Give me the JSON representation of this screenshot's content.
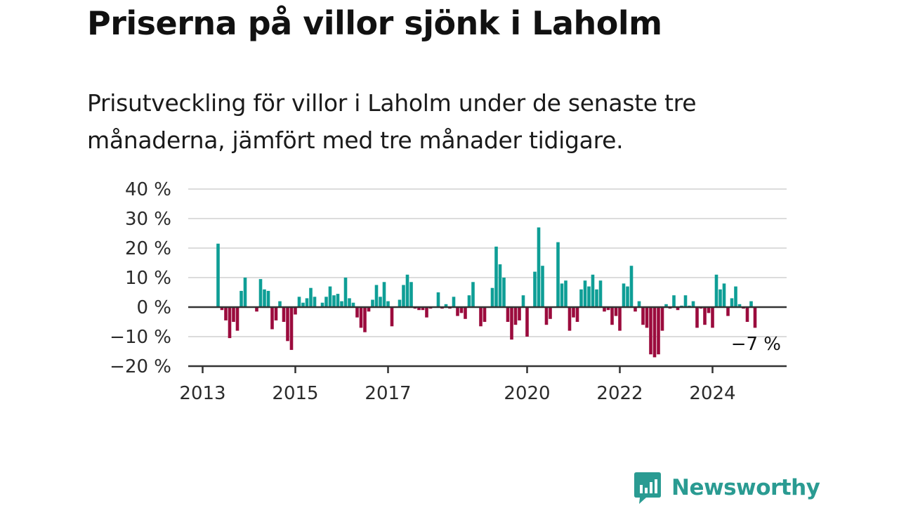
{
  "title": "Priserna på villor sjönk i Laholm",
  "subtitle": "Prisutveckling för villor i Laholm under de senaste tre månaderna, jämfört med tre månader tidigare.",
  "brand": {
    "name": "Newsworthy",
    "color": "#2a9b92"
  },
  "colors": {
    "positive": "#0e9e96",
    "negative": "#9b0b3d",
    "grid": "#dcdcdc",
    "axis": "#333333"
  },
  "chart_data": {
    "type": "bar",
    "x_start": "2013-01",
    "y_ticks": [
      {
        "value": 40,
        "label": "40 %"
      },
      {
        "value": 30,
        "label": "30 %"
      },
      {
        "value": 20,
        "label": "20 %"
      },
      {
        "value": 10,
        "label": "10 %"
      },
      {
        "value": 0,
        "label": "0 %"
      },
      {
        "value": -10,
        "label": "−10 %"
      },
      {
        "value": -20,
        "label": "−20 %"
      }
    ],
    "ylim": [
      -20,
      40
    ],
    "x_ticks": [
      {
        "label": "2013",
        "month": 0
      },
      {
        "label": "2015",
        "month": 24
      },
      {
        "label": "2017",
        "month": 48
      },
      {
        "label": "2020",
        "month": 84
      },
      {
        "label": "2022",
        "month": 108
      },
      {
        "label": "2024",
        "month": 132
      }
    ],
    "end_label": "−7 %",
    "values": [
      null,
      null,
      null,
      null,
      21.5,
      -1,
      -4.5,
      -10.5,
      -5,
      -8,
      5.5,
      10,
      null,
      null,
      -1.5,
      9.5,
      6,
      5.5,
      -7.5,
      -4.5,
      2,
      -5,
      -11.5,
      -14.5,
      -2.5,
      3.5,
      1.5,
      3,
      6.5,
      3.5,
      null,
      1.5,
      3.5,
      7,
      4,
      4.5,
      2,
      10,
      3,
      1.5,
      -3.5,
      -7,
      -8.5,
      -1.5,
      2.5,
      7.5,
      3.5,
      8.5,
      2,
      -6.5,
      null,
      2.5,
      7.5,
      11,
      8.5,
      -0.5,
      -1,
      -1,
      -3.5,
      -0.5,
      null,
      5,
      -0.5,
      1,
      -0.5,
      3.5,
      -3,
      -2,
      -4,
      4,
      8.5,
      null,
      -6.5,
      -5,
      null,
      6.5,
      20.5,
      14.5,
      10,
      -5,
      -11,
      -6,
      -4.5,
      4,
      -10,
      null,
      12,
      27,
      14,
      -6,
      -4,
      null,
      22,
      8,
      9,
      -8,
      -3.5,
      -5,
      6,
      9,
      7,
      11,
      6,
      9,
      -1.5,
      -1,
      -6,
      -3,
      -8,
      8,
      7,
      14,
      -1.5,
      2,
      -6,
      -7,
      -16,
      -17,
      -16,
      -8,
      1,
      -0.5,
      4,
      -1,
      0.5,
      4,
      0.5,
      2,
      -7,
      -0.5,
      -6,
      -2,
      -7,
      11,
      6,
      8,
      -3,
      3,
      7,
      1,
      -0.5,
      -5,
      2,
      -7
    ]
  }
}
